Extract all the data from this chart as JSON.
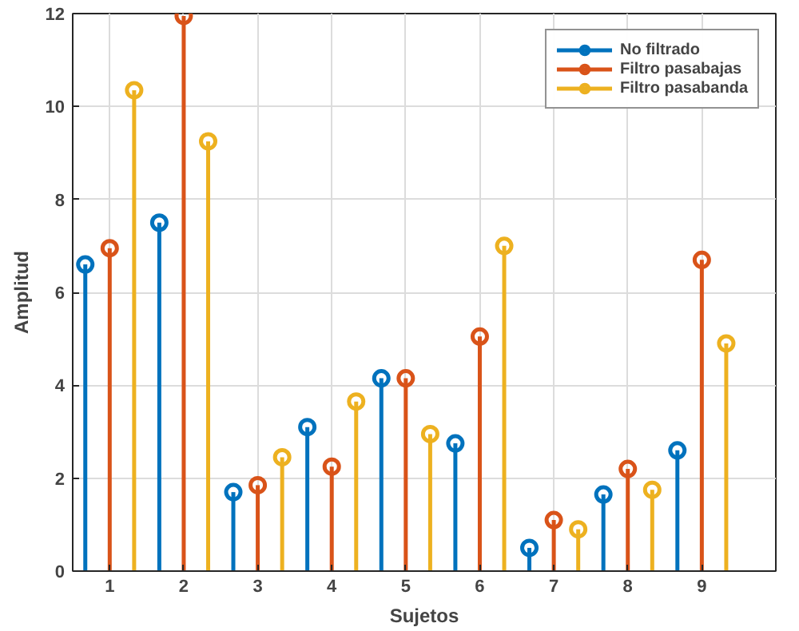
{
  "chart_data": {
    "type": "lollipop",
    "xlabel": "Sujetos",
    "ylabel": "Amplitud",
    "x": [
      1,
      2,
      3,
      4,
      5,
      6,
      7,
      8,
      9
    ],
    "xlim": [
      0.5,
      10
    ],
    "xticks": [
      1,
      2,
      3,
      4,
      5,
      6,
      7,
      8,
      9
    ],
    "ylim": [
      0,
      12
    ],
    "yticks": [
      0,
      2,
      4,
      6,
      8,
      10,
      12
    ],
    "grid": true,
    "legend": "top right",
    "marker": "circle",
    "series": [
      {
        "name": "No filtrado",
        "color": "#0072bd",
        "x": [
          0.67,
          1.67,
          2.67,
          3.67,
          4.67,
          5.67,
          6.67,
          7.67,
          8.67
        ],
        "values": [
          6.6,
          7.5,
          1.7,
          3.1,
          4.15,
          2.75,
          0.5,
          1.65,
          2.6
        ]
      },
      {
        "name": "Filtro pasabajas",
        "color": "#d95319",
        "values": [
          6.95,
          11.95,
          1.85,
          2.25,
          4.15,
          5.05,
          1.1,
          2.2,
          6.7
        ]
      },
      {
        "name": "Filtro pasabanda",
        "color": "#edb120",
        "x": [
          1.33,
          2.33,
          3.33,
          4.33,
          5.33,
          6.33,
          7.33,
          8.33,
          9.33
        ],
        "values": [
          10.35,
          9.25,
          2.45,
          3.65,
          2.95,
          7.0,
          0.9,
          1.75,
          4.9
        ]
      }
    ]
  }
}
